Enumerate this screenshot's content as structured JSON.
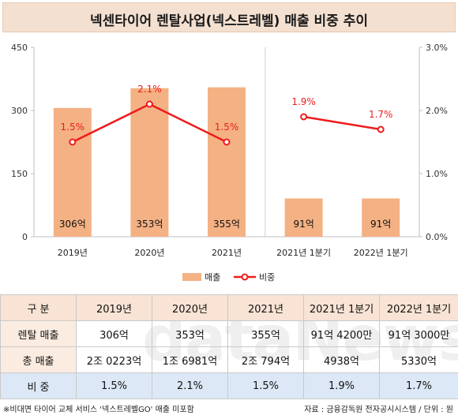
{
  "title": "넥센타이어 렌탈사업(넥스트레벨) 매출 비중 추이",
  "chart_data": {
    "type": "bar",
    "categories": [
      "2019년",
      "2020년",
      "2021년",
      "2021년 1분기",
      "2022년 1분기"
    ],
    "series": [
      {
        "name": "매출",
        "type": "bar",
        "axis": "left",
        "values": [
          306,
          353,
          355,
          91,
          91
        ],
        "labels": [
          "306억",
          "353억",
          "355억",
          "91억",
          "91억"
        ],
        "color": "#f4b183"
      },
      {
        "name": "비중",
        "type": "line",
        "axis": "right",
        "values": [
          1.5,
          2.1,
          1.5,
          1.9,
          1.7
        ],
        "labels": [
          "1.5%",
          "2.1%",
          "1.5%",
          "1.9%",
          "1.7%"
        ],
        "color": "#ee1c1c"
      }
    ],
    "y_left": {
      "min": 0,
      "max": 450,
      "ticks": [
        "0",
        "150",
        "300",
        "450"
      ]
    },
    "y_right": {
      "min": 0,
      "max": 3.0,
      "ticks": [
        "0.0%",
        "1.0%",
        "2.0%",
        "3.0%"
      ]
    },
    "line_groups": [
      [
        0,
        1,
        2
      ],
      [
        3,
        4
      ]
    ],
    "divider_after_index": 2,
    "legend_position": "bottom",
    "grid": false
  },
  "table": {
    "header": [
      "구  분",
      "2019년",
      "2020년",
      "2021년",
      "2021년 1분기",
      "2022년 1분기"
    ],
    "rows": [
      [
        "렌탈 매출",
        "306억",
        "353억",
        "355억",
        "91억 4200만",
        "91억 3000만"
      ],
      [
        "총 매출",
        "2조 0223억",
        "1조 6981억",
        "2조 794억",
        "4938억",
        "5330억"
      ],
      [
        "비  중",
        "1.5%",
        "2.1%",
        "1.5%",
        "1.9%",
        "1.7%"
      ]
    ]
  },
  "watermark": "dataNews",
  "footnote": "※비대면 타이어 교체 서비스 '넥스트레벨GO' 매출 미포함",
  "source": "자료 : 금융감독원 전자공시시스템 / 단위 : 원"
}
